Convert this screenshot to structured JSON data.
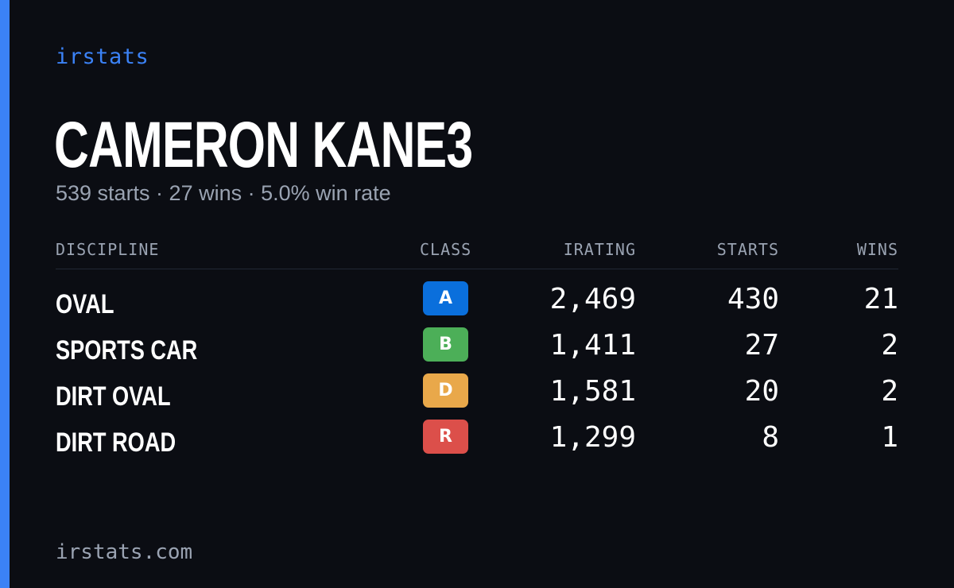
{
  "brand": "irstats",
  "player_name": "CAMERON KANE3",
  "summary": "539 starts · 27 wins · 5.0% win rate",
  "table": {
    "headers": {
      "discipline": "DISCIPLINE",
      "class": "CLASS",
      "irating": "IRATING",
      "starts": "STARTS",
      "wins": "WINS"
    },
    "rows": [
      {
        "discipline": "OVAL",
        "class": "A",
        "class_color": "#0a6fdc",
        "irating": "2,469",
        "starts": "430",
        "wins": "21"
      },
      {
        "discipline": "SPORTS CAR",
        "class": "B",
        "class_color": "#4caf58",
        "irating": "1,411",
        "starts": "27",
        "wins": "2"
      },
      {
        "discipline": "DIRT OVAL",
        "class": "D",
        "class_color": "#e9a84a",
        "irating": "1,581",
        "starts": "20",
        "wins": "2"
      },
      {
        "discipline": "DIRT ROAD",
        "class": "R",
        "class_color": "#dc4f4a",
        "irating": "1,299",
        "starts": "8",
        "wins": "1"
      }
    ]
  },
  "footer": "irstats.com",
  "colors": {
    "accent": "#3b82f6",
    "background": "#0b0d13",
    "muted_text": "#9aa3b2"
  }
}
